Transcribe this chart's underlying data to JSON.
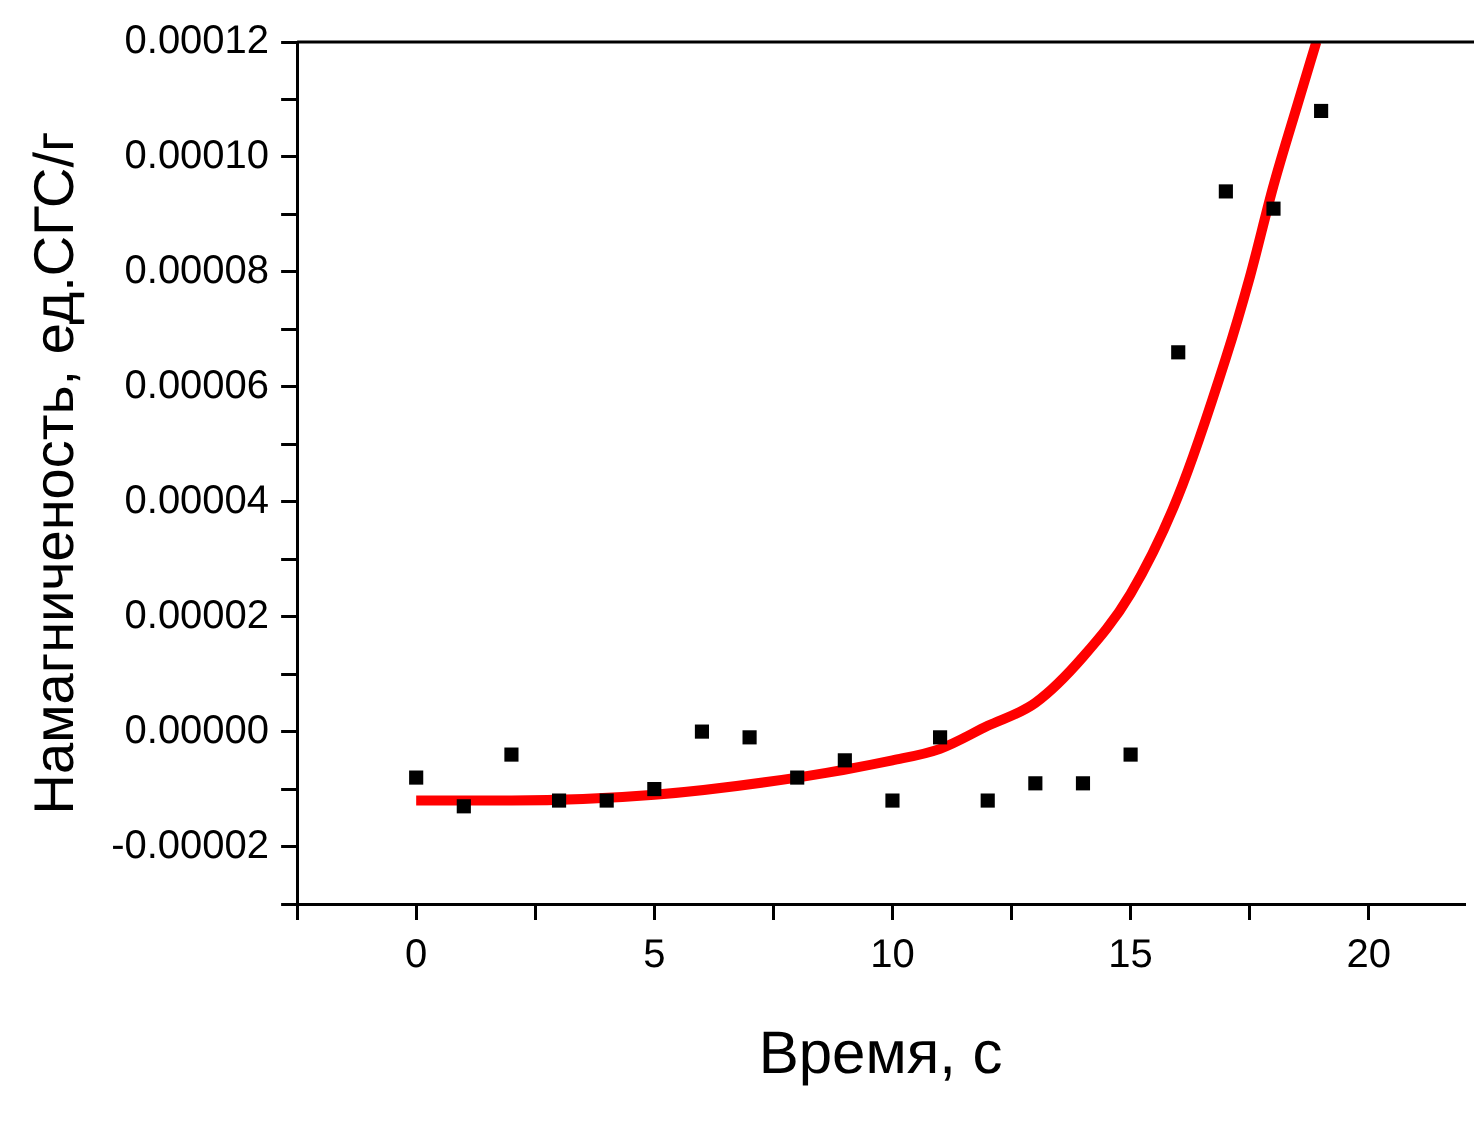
{
  "chart_data": {
    "type": "scatter",
    "xlabel": "Время, с",
    "ylabel": "Намагниченость, ед.СГС/г",
    "xlim": [
      -2.5,
      22
    ],
    "xticks": [
      {
        "value": -2.5,
        "label": null
      },
      0,
      {
        "value": 2.5,
        "label": null
      },
      5,
      {
        "value": 7.5,
        "label": null
      },
      10,
      {
        "value": 12.5,
        "label": null
      },
      15,
      {
        "value": 17.5,
        "label": null
      },
      20
    ],
    "ylim": [
      -3e-05,
      0.00012
    ],
    "yticks": [
      {
        "value": -3e-05,
        "label": null
      },
      {
        "value": -2e-05,
        "label": "-0.00002"
      },
      {
        "value": -1e-05,
        "label": null
      },
      {
        "value": 0,
        "label": "0.00000"
      },
      {
        "value": 1e-05,
        "label": null
      },
      {
        "value": 2e-05,
        "label": "0.00002"
      },
      {
        "value": 3e-05,
        "label": null
      },
      {
        "value": 4e-05,
        "label": "0.00004"
      },
      {
        "value": 5e-05,
        "label": null
      },
      {
        "value": 6e-05,
        "label": "0.00006"
      },
      {
        "value": 7e-05,
        "label": null
      },
      {
        "value": 8e-05,
        "label": "0.00008"
      },
      {
        "value": 9e-05,
        "label": null
      },
      {
        "value": 0.0001,
        "label": "0.00010"
      },
      {
        "value": 0.00011,
        "label": null
      },
      {
        "value": 0.00012,
        "label": "0.00012"
      }
    ],
    "grid": false,
    "legend": false,
    "series": [
      {
        "type": "scatter",
        "marker": "square",
        "color": "#000000",
        "x": [
          0,
          1,
          2,
          3,
          4,
          5,
          6,
          7,
          8,
          9,
          10,
          11,
          12,
          13,
          14,
          15,
          16,
          17,
          18,
          19
        ],
        "values": [
          -8e-06,
          -1.3e-05,
          -4e-06,
          -1.2e-05,
          -1.2e-05,
          -1e-05,
          0,
          -1e-06,
          -8e-06,
          -5e-06,
          -1.2e-05,
          -1e-06,
          -1.2e-05,
          -9e-06,
          -9e-06,
          -4e-06,
          6.6e-05,
          9.4e-05,
          9.1e-05,
          0.000108
        ]
      },
      {
        "type": "line",
        "marker": "none",
        "color": "#ff0000",
        "x": [
          0,
          2,
          5,
          8,
          10,
          11,
          12,
          13,
          14,
          15,
          16,
          17,
          17.5,
          18,
          18.5,
          18.9
        ],
        "values": [
          -1.2e-05,
          -1.2e-05,
          -1.1e-05,
          -8e-06,
          -5e-06,
          -3e-06,
          1e-06,
          5e-06,
          1.3e-05,
          2.4e-05,
          4.1e-05,
          6.5e-05,
          7.9e-05,
          9.5e-05,
          0.000109,
          0.00012
        ]
      }
    ]
  }
}
